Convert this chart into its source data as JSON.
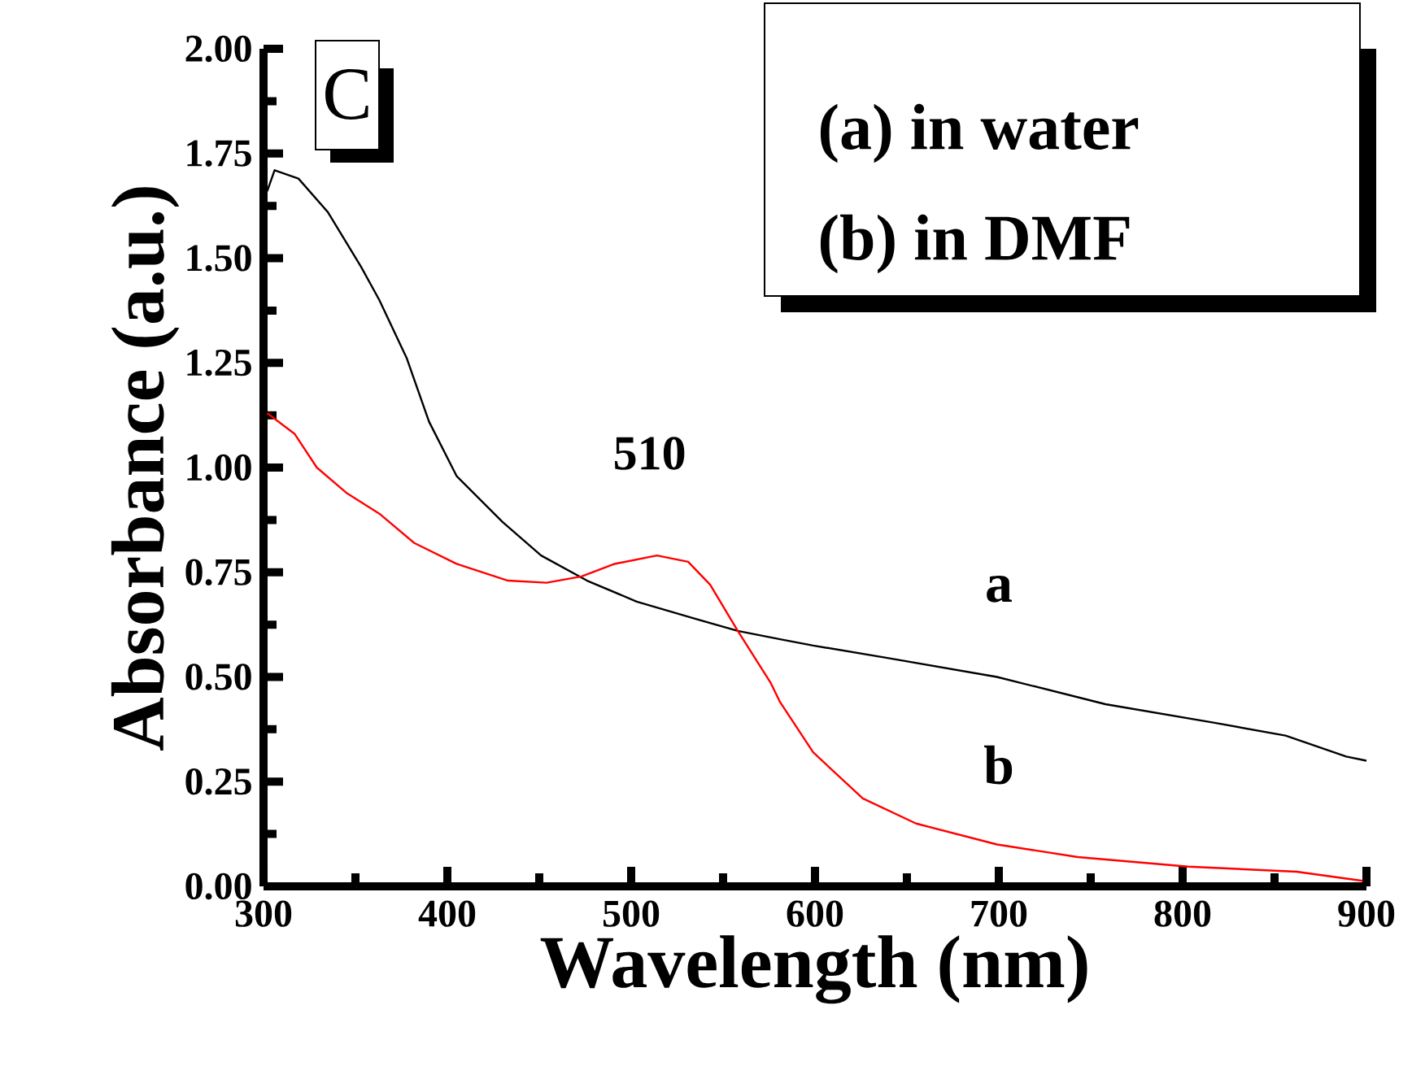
{
  "chart_data": {
    "type": "line",
    "xlabel": "Wavelength (nm)",
    "ylabel": "Absorbance (a.u.)",
    "xlim": [
      300,
      900
    ],
    "ylim": [
      0,
      2
    ],
    "xticks": [
      300,
      400,
      500,
      600,
      700,
      800,
      900
    ],
    "yticks": [
      {
        "value": 0,
        "label": "0.00"
      },
      {
        "value": 0.25,
        "label": "0.25"
      },
      {
        "value": 0.5,
        "label": "0.50"
      },
      {
        "value": 0.75,
        "label": "0.75"
      },
      {
        "value": 1,
        "label": "1.00"
      },
      {
        "value": 1.25,
        "label": "1.25"
      },
      {
        "value": 1.5,
        "label": "1.50"
      },
      {
        "value": 1.75,
        "label": "1.75"
      },
      {
        "value": 2,
        "label": "2.00"
      }
    ],
    "grid": false,
    "legend": false,
    "marker": "none",
    "line_style": "solid",
    "series": [
      {
        "name": "a",
        "color": "#000000",
        "x": [
          302,
          306,
          319,
          335,
          353,
          363,
          378,
          390,
          405,
          430,
          451,
          476,
          503,
          534,
          558,
          581,
          599,
          640,
          699,
          758,
          818,
          856,
          889,
          900
        ],
        "values": [
          1.66,
          1.71,
          1.69,
          1.61,
          1.48,
          1.4,
          1.26,
          1.11,
          0.98,
          0.87,
          0.79,
          0.73,
          0.68,
          0.64,
          0.61,
          0.59,
          0.575,
          0.545,
          0.5,
          0.435,
          0.39,
          0.36,
          0.31,
          0.3
        ]
      },
      {
        "name": "b",
        "color": "#ff0000",
        "x": [
          302,
          317,
          329,
          345,
          363,
          382,
          405,
          433,
          454,
          473,
          491,
          514,
          531,
          543,
          558,
          576,
          581,
          599,
          626,
          655,
          699,
          743,
          803,
          862,
          898
        ],
        "values": [
          1.13,
          1.08,
          1.0,
          0.94,
          0.89,
          0.82,
          0.77,
          0.73,
          0.725,
          0.74,
          0.77,
          0.79,
          0.775,
          0.72,
          0.61,
          0.485,
          0.44,
          0.32,
          0.21,
          0.15,
          0.1,
          0.07,
          0.047,
          0.035,
          0.013
        ]
      }
    ],
    "annotations": [
      {
        "text": "510",
        "x": 510,
        "y": 0.79
      },
      "C",
      "(a) in water",
      "(b) in DMF"
    ]
  }
}
